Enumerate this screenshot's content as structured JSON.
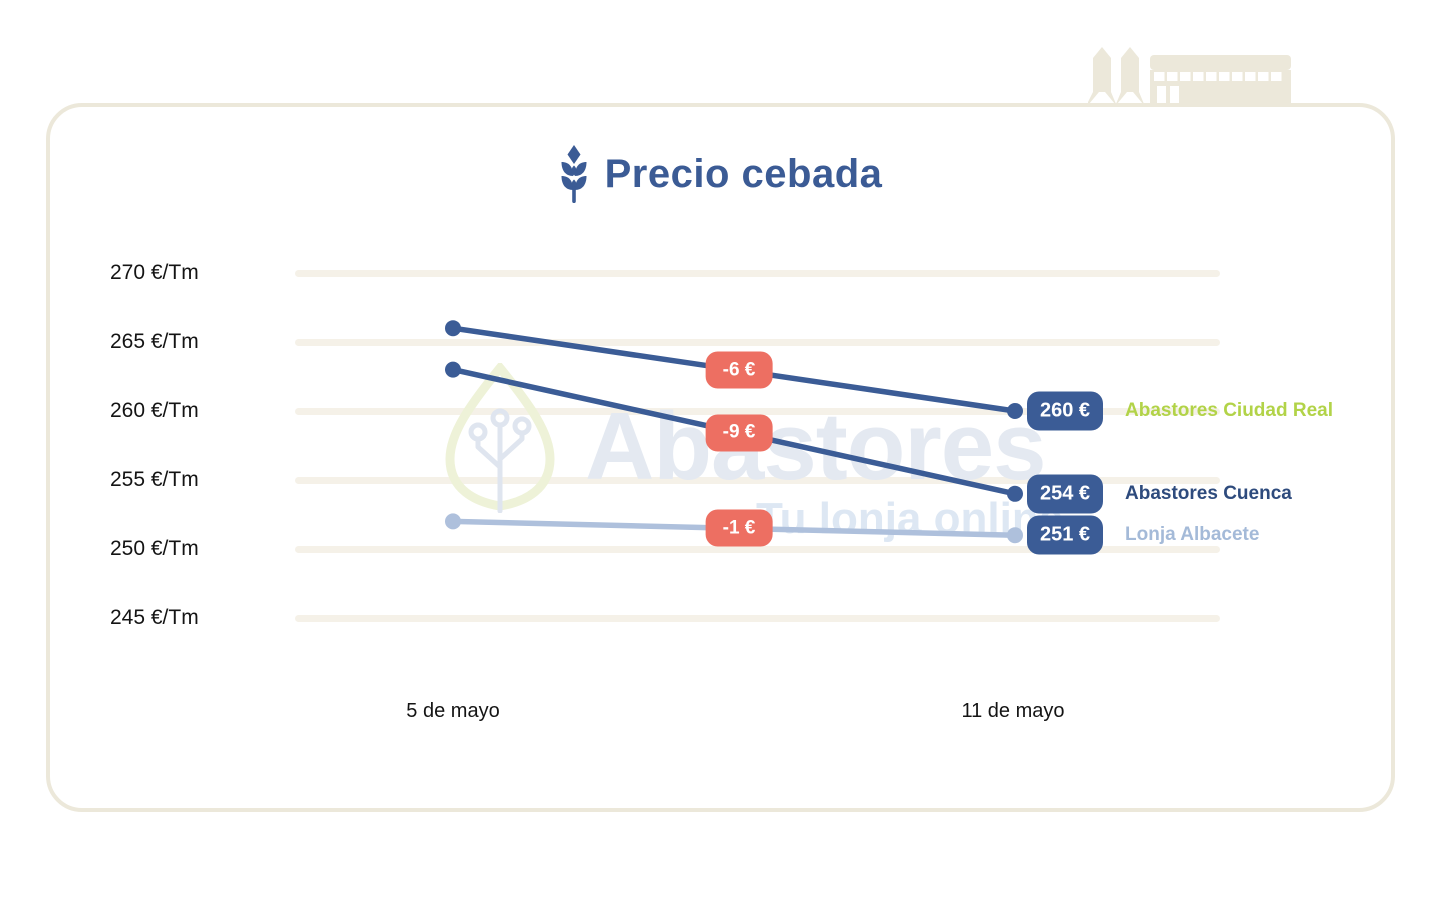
{
  "title": "Precio cebada",
  "watermark": {
    "brand": "Abastores",
    "tagline": "Tu lonja online"
  },
  "colors": {
    "primary_blue": "#3b5c96",
    "title_blue": "#3b5b95",
    "navy_label": "#2e4b7d",
    "light_blue_line": "#aec0dc",
    "light_blue_label": "#a4bad8",
    "green_label": "#b2d348",
    "red_badge": "#ed6f62",
    "gridline": "#f5f1e8",
    "card_border": "#ece8da",
    "building": "#ece8da",
    "watermark_brand": "#e4e9f1",
    "watermark_tagline": "#dde7f3",
    "watermark_leaf": "#eef2d8",
    "watermark_circuit": "#dfe5ef"
  },
  "chart_data": {
    "type": "line",
    "title": "Precio cebada",
    "unit": "€/Tm",
    "grid": true,
    "legend_position": "right of end points",
    "x_categories": [
      "5 de mayo",
      "11 de mayo"
    ],
    "ylim": [
      245,
      270
    ],
    "y_ticks": [
      {
        "value": 270,
        "label": "270 €/Tm"
      },
      {
        "value": 265,
        "label": "265 €/Tm"
      },
      {
        "value": 260,
        "label": "260 €/Tm"
      },
      {
        "value": 255,
        "label": "255 €/Tm"
      },
      {
        "value": 250,
        "label": "250 €/Tm"
      },
      {
        "value": 245,
        "label": "245 €/Tm"
      }
    ],
    "series": [
      {
        "name": "Abastores Ciudad Real",
        "values": [
          266,
          260
        ],
        "delta_label": "-6 €",
        "end_price_label": "260 €",
        "line_color": "#3b5c96",
        "label_color": "#b2d348"
      },
      {
        "name": "Abastores Cuenca",
        "values": [
          263,
          254
        ],
        "delta_label": "-9 €",
        "end_price_label": "254 €",
        "line_color": "#3b5c96",
        "label_color": "#2e4b7d"
      },
      {
        "name": "Lonja Albacete",
        "values": [
          252,
          251
        ],
        "delta_label": "-1 €",
        "end_price_label": "251 €",
        "line_color": "#aec0dc",
        "label_color": "#a4bad8"
      }
    ]
  }
}
